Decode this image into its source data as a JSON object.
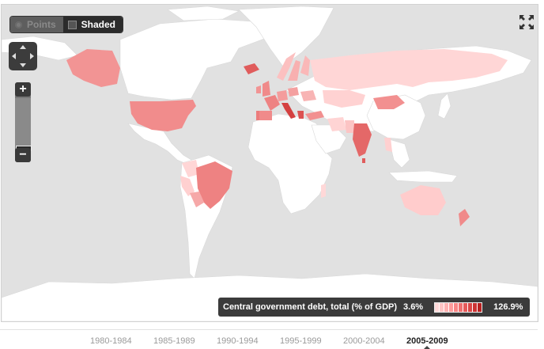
{
  "toggle": {
    "points_label": "Points",
    "shaded_label": "Shaded",
    "active": "Shaded"
  },
  "legend": {
    "title": "Central government debt, total (% of GDP)",
    "min_label": "3.6%",
    "max_label": "126.9%",
    "min_value": 3.6,
    "max_value": 126.9,
    "scale_colors": [
      "#ffd8d8",
      "#ffc4c4",
      "#ffb0b0",
      "#ff9c9c",
      "#f98686",
      "#f07070",
      "#e65a5a",
      "#da4646",
      "#cc3434",
      "#b82222"
    ]
  },
  "timeline": {
    "periods": [
      "1980-1984",
      "1985-1989",
      "1990-1994",
      "1995-1999",
      "2000-2004",
      "2005-2009"
    ],
    "selected": "2005-2009"
  },
  "colors": {
    "ocean": "#e1e1e1",
    "no_data_land": "#ffffff",
    "shade_low": "#ffd0d0",
    "shade_mid": "#f58a8a",
    "shade_high": "#d94a4a"
  },
  "regions": [
    {
      "name": "Alaska",
      "level": 0.55
    },
    {
      "name": "United States",
      "level": 0.6
    },
    {
      "name": "Canada",
      "level": 0
    },
    {
      "name": "Greenland",
      "level": 0
    },
    {
      "name": "Mexico",
      "level": 0
    },
    {
      "name": "Colombia",
      "level": 0.2
    },
    {
      "name": "Peru",
      "level": 0.2
    },
    {
      "name": "Brazil",
      "level": 0.55
    },
    {
      "name": "Bolivia",
      "level": 0.35
    },
    {
      "name": "Argentina",
      "level": 0
    },
    {
      "name": "Iceland",
      "level": 0.75
    },
    {
      "name": "United Kingdom",
      "level": 0.5
    },
    {
      "name": "Ireland",
      "level": 0.45
    },
    {
      "name": "France",
      "level": 0.55
    },
    {
      "name": "Spain",
      "level": 0.5
    },
    {
      "name": "Portugal",
      "level": 0.55
    },
    {
      "name": "Germany",
      "level": 0.4
    },
    {
      "name": "Italy",
      "level": 0.85
    },
    {
      "name": "Greece",
      "level": 0.75
    },
    {
      "name": "Norway",
      "level": 0.25
    },
    {
      "name": "Sweden",
      "level": 0.35
    },
    {
      "name": "Finland",
      "level": 0.3
    },
    {
      "name": "Poland",
      "level": 0.4
    },
    {
      "name": "Ukraine",
      "level": 0.3
    },
    {
      "name": "Turkey",
      "level": 0.45
    },
    {
      "name": "Russia",
      "level": 0.12
    },
    {
      "name": "Kazakhstan",
      "level": 0.12
    },
    {
      "name": "Mongolia",
      "level": 0.55
    },
    {
      "name": "China",
      "level": 0
    },
    {
      "name": "Pakistan",
      "level": 0.25
    },
    {
      "name": "India",
      "level": 0.7
    },
    {
      "name": "Sri Lanka",
      "level": 0.75
    },
    {
      "name": "Thailand",
      "level": 0.2
    },
    {
      "name": "Iran",
      "level": 0.15
    },
    {
      "name": "Madagascar",
      "level": 0.15
    },
    {
      "name": "Australia",
      "level": 0.2
    },
    {
      "name": "New Zealand",
      "level": 0.5
    }
  ]
}
